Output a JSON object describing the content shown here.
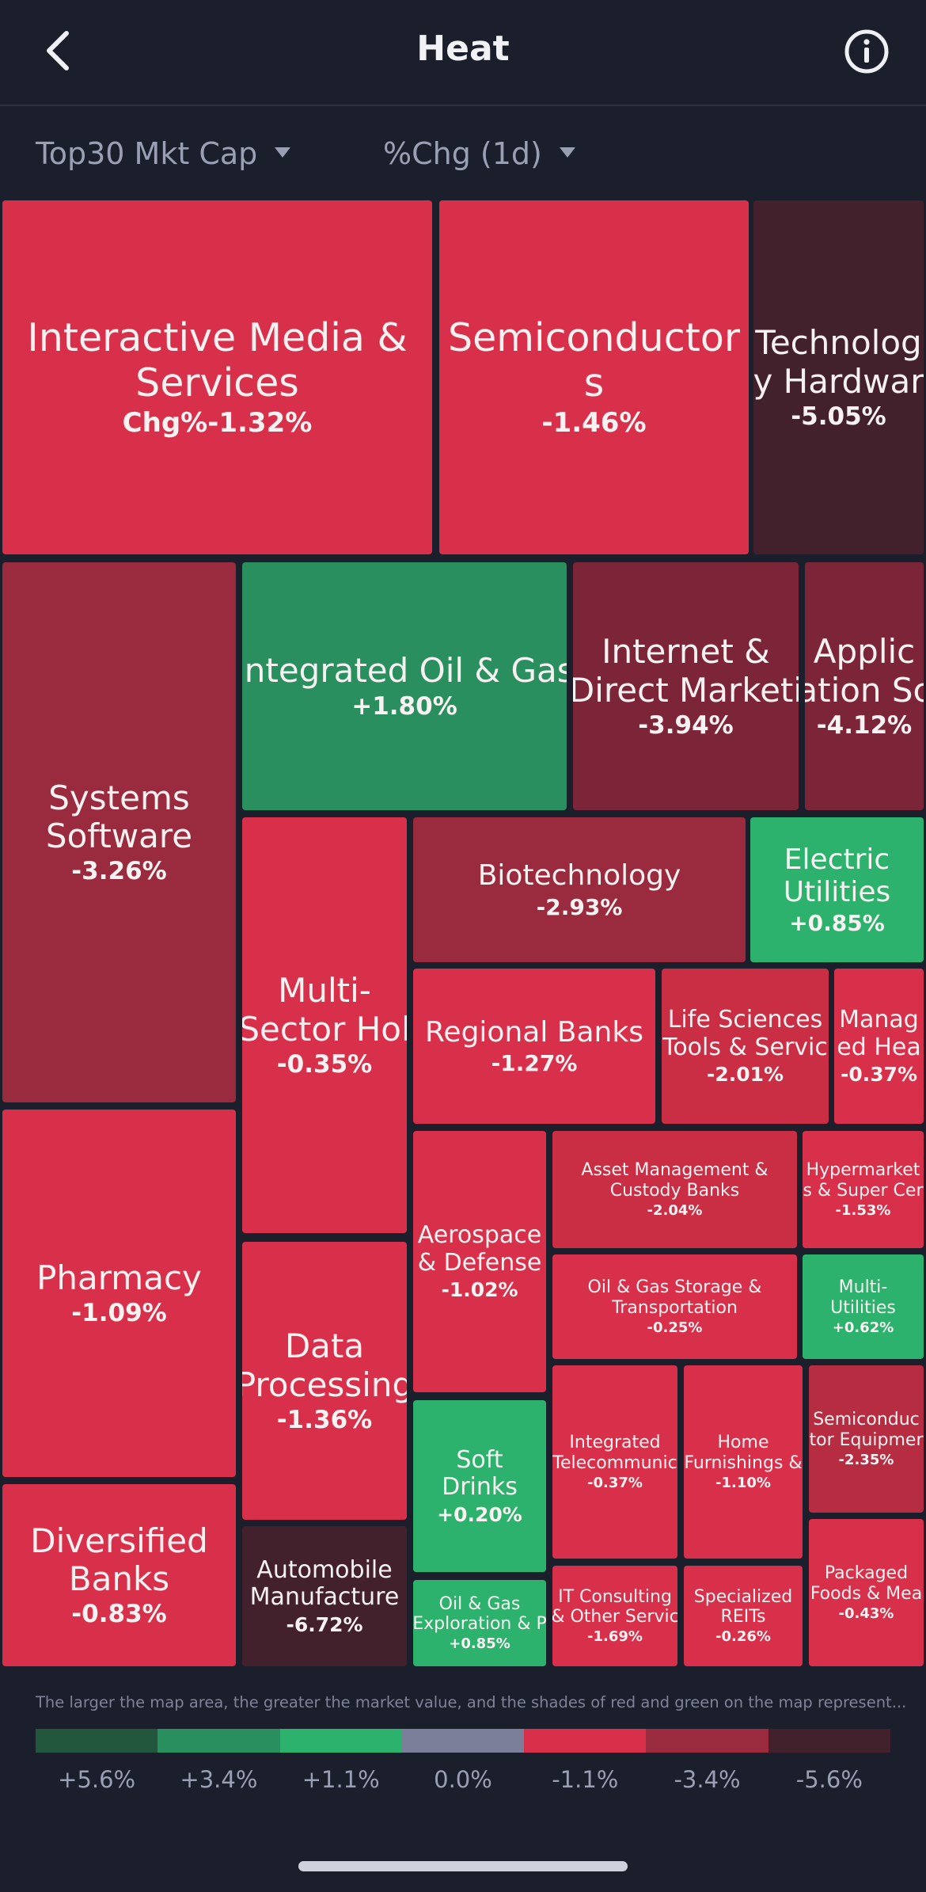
{
  "header": {
    "title": "Heat",
    "back_icon": "chevron-left-icon",
    "info_icon": "info-circle-icon"
  },
  "filters": {
    "scope": "Top30 Mkt Cap",
    "metric": "%Chg (1d)"
  },
  "colors": {
    "background": "#1b1e2b",
    "up_light": "#2db26d",
    "up_mid": "#2a8f5f",
    "up_dark": "#22563d",
    "neutral": "#7c7f9a",
    "down_light": "#d8304a",
    "down_mid": "#9a2a3d",
    "down_dark": "#42202c"
  },
  "tiles": [
    {
      "name": "Interactive Media &\nServices",
      "change": "Chg%-1.32%"
    },
    {
      "name": "Semiconductor\ns",
      "change": "-1.46%"
    },
    {
      "name": "Technolog\ny Hardwar",
      "change": "-5.05%"
    },
    {
      "name": "Systems\nSoftware",
      "change": "-3.26%"
    },
    {
      "name": "Integrated Oil & Gas",
      "change": "+1.80%"
    },
    {
      "name": "Internet &\nDirect Marketi",
      "change": "-3.94%"
    },
    {
      "name": "Applic\nation Sc",
      "change": "-4.12%"
    },
    {
      "name": "Multi-\nSector Hol",
      "change": "-0.35%"
    },
    {
      "name": "Biotechnology",
      "change": "-2.93%"
    },
    {
      "name": "Electric\nUtilities",
      "change": "+0.85%"
    },
    {
      "name": "Regional Banks",
      "change": "-1.27%"
    },
    {
      "name": "Life Sciences\nTools & Servic",
      "change": "-2.01%"
    },
    {
      "name": "Manag\ned Hea",
      "change": "-0.37%"
    },
    {
      "name": "Pharmacy",
      "change": "-1.09%"
    },
    {
      "name": "Aerospace\n& Defense",
      "change": "-1.02%"
    },
    {
      "name": "Asset Management &\nCustody Banks",
      "change": "-2.04%"
    },
    {
      "name": "Hypermarket\ns & Super Cer",
      "change": "-1.53%"
    },
    {
      "name": "Oil & Gas Storage &\nTransportation",
      "change": "-0.25%"
    },
    {
      "name": "Multi-\nUtilities",
      "change": "+0.62%"
    },
    {
      "name": "Data\nProcessing",
      "change": "-1.36%"
    },
    {
      "name": "Integrated\nTelecommunic",
      "change": "-0.37%"
    },
    {
      "name": "Home\nFurnishings &",
      "change": "-1.10%"
    },
    {
      "name": "Semiconduc\ntor Equipmer",
      "change": "-2.35%"
    },
    {
      "name": "Soft\nDrinks",
      "change": "+0.20%"
    },
    {
      "name": "Diversified\nBanks",
      "change": "-0.83%"
    },
    {
      "name": "Automobile\nManufacture",
      "change": "-6.72%"
    },
    {
      "name": "Packaged\nFoods & Mea",
      "change": "-0.43%"
    },
    {
      "name": "Oil & Gas\nExploration & P",
      "change": "+0.85%"
    },
    {
      "name": "IT Consulting\n& Other Servic",
      "change": "-1.69%"
    },
    {
      "name": "Specialized\nREITs",
      "change": "-0.26%"
    }
  ],
  "legend": {
    "note": "The larger the map area, the greater the market value, and the shades of red and green on the map represent...",
    "colors": [
      "#22563d",
      "#2a8f5f",
      "#2db26d",
      "#7c7f9a",
      "#d8304a",
      "#9a2a3d",
      "#42202c"
    ],
    "labels": [
      "+5.6%",
      "+3.4%",
      "+1.1%",
      "0.0%",
      "-1.1%",
      "-3.4%",
      "-5.6%"
    ]
  }
}
